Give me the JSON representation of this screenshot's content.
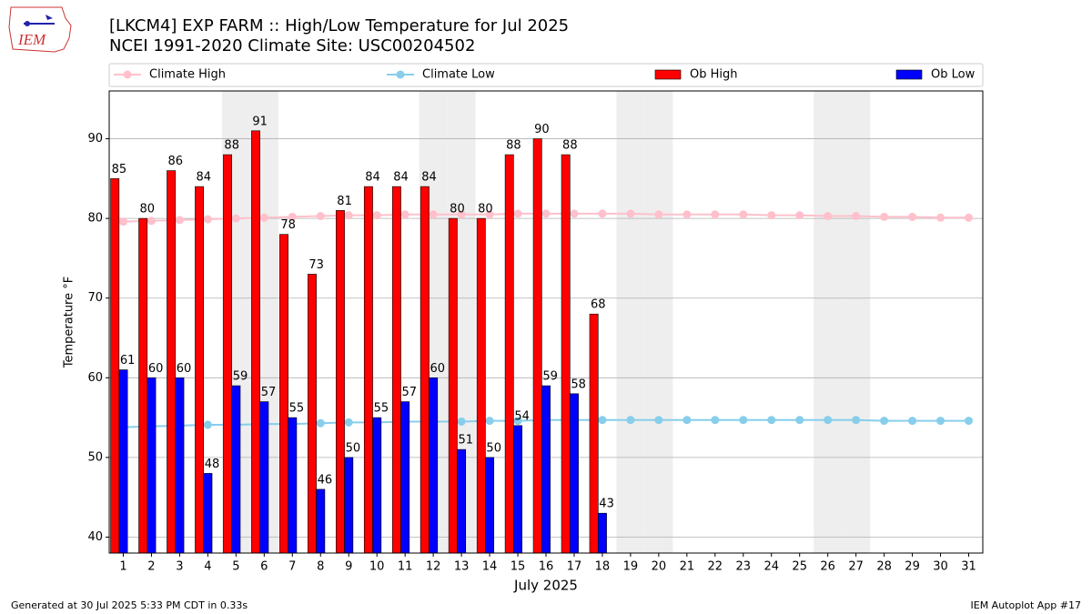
{
  "chart_data": {
    "type": "bar",
    "title": "[LKCM4] EXP FARM :: High/Low Temperature for Jul 2025",
    "subtitle": "NCEI 1991-2020 Climate Site: USC00204502",
    "logo_text": "IEM",
    "xlabel": "July 2025",
    "ylabel": "Temperature °F",
    "footer_left": "Generated at 30 Jul 2025 5:33 PM CDT in 0.33s",
    "footer_right": "IEM Autoplot App #17",
    "x": [
      1,
      2,
      3,
      4,
      5,
      6,
      7,
      8,
      9,
      10,
      11,
      12,
      13,
      14,
      15,
      16,
      17,
      18,
      19,
      20,
      21,
      22,
      23,
      24,
      25,
      26,
      27,
      28,
      29,
      30,
      31
    ],
    "xlim": [
      0.5,
      31.5
    ],
    "ylim": [
      38,
      96
    ],
    "yticks": [
      40,
      50,
      60,
      70,
      80,
      90
    ],
    "grid": true,
    "legend": "top",
    "shaded_days": [
      5,
      6,
      12,
      13,
      19,
      20,
      26,
      27
    ],
    "series": [
      {
        "name": "Climate High",
        "type": "line",
        "color": "#ffc0cb",
        "values": [
          79.6,
          79.7,
          79.8,
          79.9,
          80.0,
          80.1,
          80.2,
          80.3,
          80.4,
          80.4,
          80.5,
          80.5,
          80.5,
          80.5,
          80.6,
          80.6,
          80.6,
          80.6,
          80.6,
          80.5,
          80.5,
          80.5,
          80.5,
          80.4,
          80.4,
          80.3,
          80.3,
          80.2,
          80.2,
          80.1,
          80.1
        ]
      },
      {
        "name": "Climate Low",
        "type": "line",
        "color": "#87ceeb",
        "values": [
          53.8,
          53.9,
          54.0,
          54.1,
          54.1,
          54.2,
          54.2,
          54.3,
          54.4,
          54.4,
          54.5,
          54.5,
          54.5,
          54.6,
          54.6,
          54.7,
          54.7,
          54.7,
          54.7,
          54.7,
          54.7,
          54.7,
          54.7,
          54.7,
          54.7,
          54.7,
          54.7,
          54.6,
          54.6,
          54.6,
          54.6
        ]
      },
      {
        "name": "Ob High",
        "type": "bar",
        "color": "#ff0000",
        "values": [
          85,
          80,
          86,
          84,
          88,
          91,
          78,
          73,
          81,
          84,
          84,
          84,
          80,
          80,
          88,
          90,
          88,
          68,
          null,
          null,
          null,
          null,
          null,
          null,
          null,
          null,
          null,
          null,
          null,
          null,
          null
        ]
      },
      {
        "name": "Ob Low",
        "type": "bar",
        "color": "#0000ff",
        "values": [
          61,
          60,
          60,
          48,
          59,
          57,
          55,
          46,
          50,
          55,
          57,
          60,
          51,
          50,
          54,
          59,
          58,
          43,
          null,
          null,
          null,
          null,
          null,
          null,
          null,
          null,
          null,
          null,
          null,
          null,
          null
        ]
      }
    ]
  }
}
